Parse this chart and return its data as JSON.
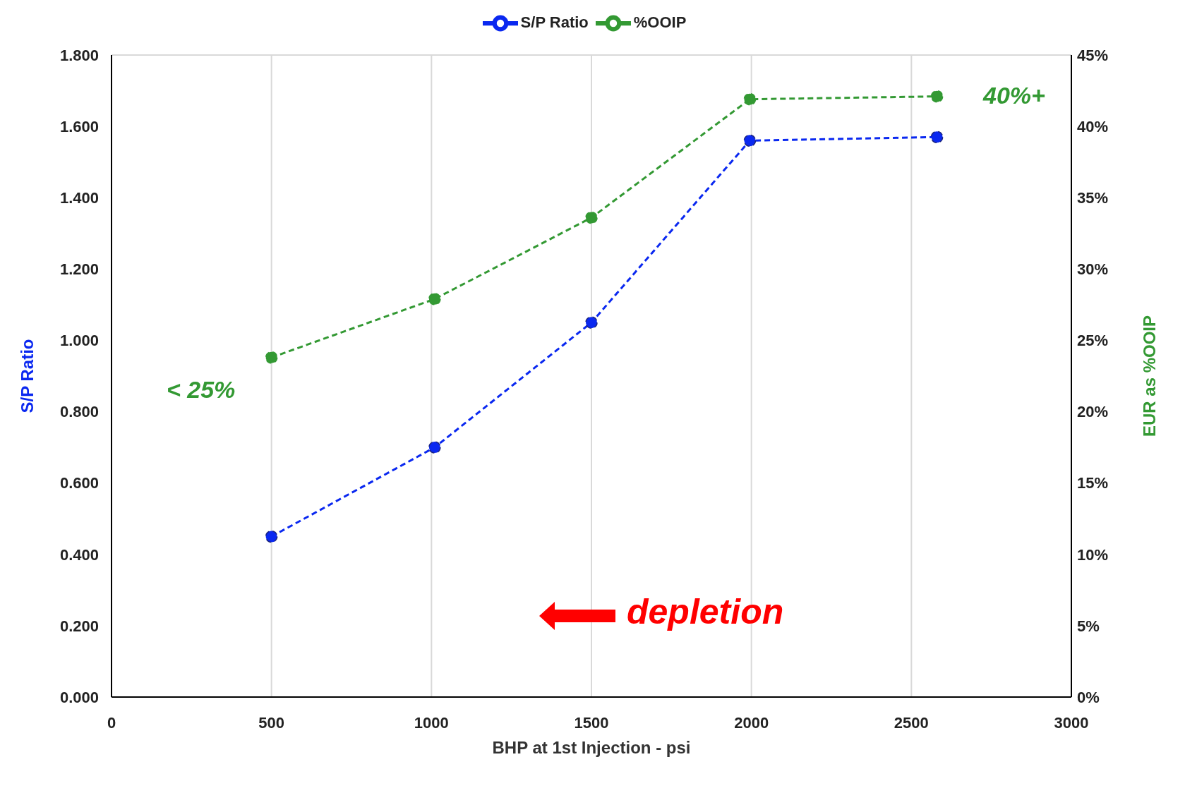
{
  "chart_data": {
    "type": "line",
    "xlabel": "BHP at 1st Injection - psi",
    "ylabel": "S/P Ratio",
    "y2label": "EUR as %OOIP",
    "x": [
      500,
      1010,
      1500,
      1995,
      2580
    ],
    "series": [
      {
        "name": "S/P Ratio",
        "color": "#0a28f0",
        "values": [
          0.45,
          0.7,
          1.05,
          1.56,
          1.57
        ]
      },
      {
        "name": "%OOIP",
        "color": "#339933",
        "axis": "y2",
        "values": [
          23.8,
          27.9,
          33.6,
          41.9,
          42.1
        ]
      }
    ],
    "xlim": [
      0,
      3000
    ],
    "xticks": [
      0,
      500,
      1000,
      1500,
      2000,
      2500,
      3000
    ],
    "ylim": [
      0,
      1.8
    ],
    "yticks": [
      {
        "value": 0,
        "label": "0.000"
      },
      {
        "value": 0.2,
        "label": "0.200"
      },
      {
        "value": 0.4,
        "label": "0.400"
      },
      {
        "value": 0.6,
        "label": "0.600"
      },
      {
        "value": 0.8,
        "label": "0.800"
      },
      {
        "value": 1,
        "label": "1.000"
      },
      {
        "value": 1.2,
        "label": "1.200"
      },
      {
        "value": 1.4,
        "label": "1.400"
      },
      {
        "value": 1.6,
        "label": "1.600"
      },
      {
        "value": 1.8,
        "label": "1.800"
      }
    ],
    "y2lim": [
      0,
      45
    ],
    "y2ticks": [
      {
        "value": 0,
        "label": "0%"
      },
      {
        "value": 5,
        "label": "5%"
      },
      {
        "value": 10,
        "label": "10%"
      },
      {
        "value": 15,
        "label": "15%"
      },
      {
        "value": 20,
        "label": "20%"
      },
      {
        "value": 25,
        "label": "25%"
      },
      {
        "value": 30,
        "label": "30%"
      },
      {
        "value": 35,
        "label": "35%"
      },
      {
        "value": 40,
        "label": "40%"
      },
      {
        "value": 45,
        "label": "45%"
      }
    ],
    "annotations": [
      "< 25%",
      "40%+",
      "depletion"
    ],
    "grid": true,
    "legend": "top",
    "marker": "circle",
    "line_style": "dashed"
  }
}
